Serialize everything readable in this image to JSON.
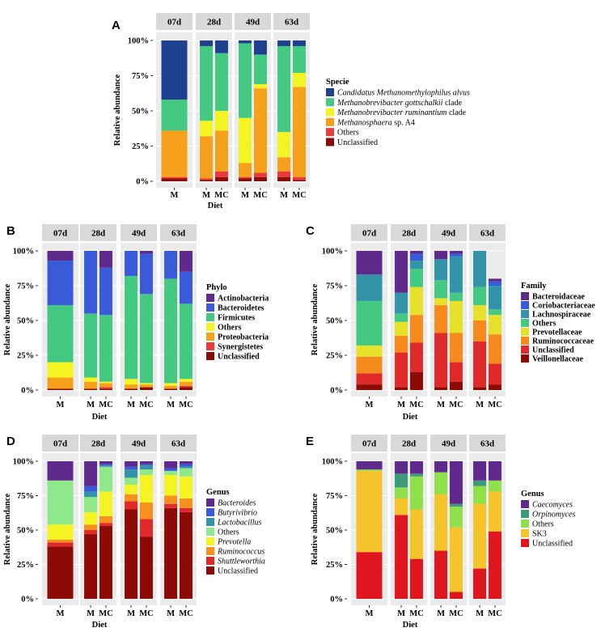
{
  "chart_data": [
    {
      "panel": "A",
      "type": "bar",
      "stacked": true,
      "facets": [
        "07d",
        "28d",
        "49d",
        "63d"
      ],
      "bars": [
        {
          "facet": "07d",
          "group": "M",
          "values": [
            42,
            22,
            0,
            33,
            1,
            2
          ]
        },
        {
          "facet": "28d",
          "group": "M",
          "values": [
            4,
            53,
            11,
            30,
            1,
            1
          ]
        },
        {
          "facet": "28d",
          "group": "MC",
          "values": [
            9,
            41,
            14,
            29,
            4,
            3
          ]
        },
        {
          "facet": "49d",
          "group": "M",
          "values": [
            2,
            53,
            32,
            10,
            1,
            2
          ]
        },
        {
          "facet": "49d",
          "group": "MC",
          "values": [
            10,
            21,
            3,
            60,
            3,
            3
          ]
        },
        {
          "facet": "63d",
          "group": "M",
          "values": [
            4,
            61,
            18,
            10,
            4,
            3
          ]
        },
        {
          "facet": "63d",
          "group": "MC",
          "values": [
            4,
            19,
            10,
            64,
            2,
            1
          ]
        }
      ],
      "title": "Specie",
      "legend_title": "Specie",
      "legend": [
        {
          "name": "Candidatus Methanomethylophilus alvus",
          "italic": "Candidatus Methanomethylophilus alvus",
          "suffix": "",
          "color": "#1f3f8f"
        },
        {
          "name": "Methanobrevibacter gottschalkii clade",
          "italic": "Methanobrevibacter gottschalkii",
          "suffix": "clade",
          "color": "#43c981"
        },
        {
          "name": "Methanobrevibacter ruminantium clade",
          "italic": "Methanobrevibacter ruminantium",
          "suffix": "clade",
          "color": "#f4f423"
        },
        {
          "name": "Methanosphaera sp. A4",
          "italic": "Methanosphaera",
          "suffix": "sp. A4",
          "color": "#f7a01c"
        },
        {
          "name": "Others",
          "italic": "",
          "suffix": "Others",
          "color": "#ec3a3a"
        },
        {
          "name": "Unclassified",
          "italic": "",
          "suffix": "Unclassified",
          "color": "#8c0b06"
        }
      ],
      "ylabel": "Relative abundance",
      "xlabel": "Diet",
      "ylim": [
        0,
        100
      ],
      "yticks": [
        "0%",
        "25%",
        "50%",
        "75%",
        "100%"
      ]
    },
    {
      "panel": "B",
      "type": "bar",
      "stacked": true,
      "facets": [
        "07d",
        "28d",
        "49d",
        "63d"
      ],
      "bars": [
        {
          "facet": "07d",
          "group": "M",
          "values": [
            7,
            32,
            41,
            11,
            8,
            0,
            1
          ]
        },
        {
          "facet": "28d",
          "group": "M",
          "values": [
            0,
            45,
            46,
            3,
            5,
            0,
            1
          ]
        },
        {
          "facet": "28d",
          "group": "MC",
          "values": [
            12,
            34,
            48,
            1,
            3,
            1,
            1
          ]
        },
        {
          "facet": "49d",
          "group": "M",
          "values": [
            0,
            18,
            74,
            4,
            3,
            0,
            1
          ]
        },
        {
          "facet": "49d",
          "group": "MC",
          "values": [
            2,
            29,
            64,
            1,
            2,
            0,
            2
          ]
        },
        {
          "facet": "63d",
          "group": "M",
          "values": [
            0,
            20,
            75,
            2,
            2,
            0,
            1
          ]
        },
        {
          "facet": "63d",
          "group": "MC",
          "values": [
            15,
            23,
            54,
            2,
            3,
            1,
            2
          ]
        }
      ],
      "legend_title": "Phylo",
      "legend": [
        {
          "name": "Actinobacteria",
          "color": "#5e2a8c"
        },
        {
          "name": "Bacteroidetes",
          "color": "#3a5bd9"
        },
        {
          "name": "Firmicutes",
          "color": "#43c981"
        },
        {
          "name": "Others",
          "color": "#f4f423"
        },
        {
          "name": "Proteobacteria",
          "color": "#f7a01c"
        },
        {
          "name": "Synergistetes",
          "color": "#ec3a3a"
        },
        {
          "name": "Unclassified",
          "color": "#8c0b06"
        }
      ],
      "ylabel": "Relative abundance",
      "xlabel": "Diet",
      "ylim": [
        0,
        100
      ],
      "yticks": [
        "0%",
        "25%",
        "50%",
        "75%",
        "100%"
      ]
    },
    {
      "panel": "C",
      "type": "bar",
      "stacked": true,
      "facets": [
        "07d",
        "28d",
        "49d",
        "63d"
      ],
      "bars": [
        {
          "facet": "07d",
          "group": "M",
          "values": [
            17,
            0,
            19,
            32,
            8,
            12,
            8,
            4
          ]
        },
        {
          "facet": "28d",
          "group": "M",
          "values": [
            30,
            0,
            15,
            6,
            10,
            12,
            25,
            2
          ]
        },
        {
          "facet": "28d",
          "group": "MC",
          "values": [
            2,
            5,
            6,
            13,
            20,
            20,
            21,
            13
          ]
        },
        {
          "facet": "49d",
          "group": "M",
          "values": [
            6,
            0,
            15,
            13,
            5,
            20,
            39,
            2
          ]
        },
        {
          "facet": "49d",
          "group": "MC",
          "values": [
            2,
            2,
            26,
            6,
            23,
            21,
            14,
            6
          ]
        },
        {
          "facet": "63d",
          "group": "M",
          "values": [
            0,
            0,
            26,
            13,
            11,
            15,
            33,
            2
          ]
        },
        {
          "facet": "63d",
          "group": "MC",
          "values": [
            2,
            3,
            17,
            4,
            14,
            21,
            15,
            4
          ]
        }
      ],
      "legend_title": "Family",
      "legend": [
        {
          "name": "Bacteroidaceae",
          "color": "#5e2a8c"
        },
        {
          "name": "Coriobacteriaceae",
          "color": "#3a5bd9"
        },
        {
          "name": "Lachnospiraceae",
          "color": "#3393a8"
        },
        {
          "name": "Others",
          "color": "#43c981"
        },
        {
          "name": "Prevotellaceae",
          "color": "#e6e22a"
        },
        {
          "name": "Ruminococcaceae",
          "color": "#f78a1c"
        },
        {
          "name": "Unclassified",
          "color": "#e02a2a"
        },
        {
          "name": "Veillonellaceae",
          "color": "#8c0b06"
        }
      ],
      "ylabel": "Relative abundance",
      "xlabel": "Diet",
      "ylim": [
        0,
        100
      ],
      "yticks": [
        "0%",
        "25%",
        "50%",
        "75%",
        "100%"
      ]
    },
    {
      "panel": "D",
      "type": "bar",
      "stacked": true,
      "facets": [
        "07d",
        "28d",
        "49d",
        "63d"
      ],
      "bars": [
        {
          "facet": "07d",
          "group": "M",
          "values": [
            14,
            0,
            0,
            32,
            11,
            2,
            3,
            38
          ]
        },
        {
          "facet": "28d",
          "group": "M",
          "values": [
            18,
            4,
            4,
            11,
            9,
            4,
            3,
            47
          ]
        },
        {
          "facet": "28d",
          "group": "MC",
          "values": [
            2,
            1,
            1,
            18,
            18,
            5,
            2,
            53
          ]
        },
        {
          "facet": "49d",
          "group": "M",
          "values": [
            4,
            2,
            6,
            5,
            7,
            5,
            6,
            65
          ]
        },
        {
          "facet": "49d",
          "group": "MC",
          "values": [
            2,
            1,
            3,
            4,
            20,
            12,
            13,
            45
          ]
        },
        {
          "facet": "63d",
          "group": "M",
          "values": [
            5,
            2,
            0,
            3,
            15,
            6,
            3,
            66
          ]
        },
        {
          "facet": "63d",
          "group": "MC",
          "values": [
            2,
            2,
            1,
            6,
            16,
            7,
            3,
            63
          ]
        }
      ],
      "legend_title": "Genus",
      "legend": [
        {
          "name": "Bacteroides",
          "italic": true,
          "color": "#5e2a8c"
        },
        {
          "name": "Butyrivibrio",
          "italic": true,
          "color": "#3a5bd9"
        },
        {
          "name": "Lactobacillus",
          "italic": true,
          "color": "#3393a8"
        },
        {
          "name": "Others",
          "italic": false,
          "color": "#8fe88a"
        },
        {
          "name": "Prevotella",
          "italic": true,
          "color": "#f4f423"
        },
        {
          "name": "Ruminococcus",
          "italic": true,
          "color": "#f7901c"
        },
        {
          "name": "Shuttleworthia",
          "italic": true,
          "color": "#e02a2a"
        },
        {
          "name": "Unclassified",
          "italic": false,
          "color": "#8c0b06"
        }
      ],
      "ylabel": "Relative abundance",
      "xlabel": "Diet",
      "ylim": [
        0,
        100
      ],
      "yticks": [
        "0%",
        "25%",
        "50%",
        "75%",
        "100%"
      ]
    },
    {
      "panel": "E",
      "type": "bar",
      "stacked": true,
      "facets": [
        "07d",
        "28d",
        "49d",
        "63d"
      ],
      "bars": [
        {
          "facet": "07d",
          "group": "M",
          "values": [
            6,
            0,
            1,
            59,
            34
          ]
        },
        {
          "facet": "28d",
          "group": "M",
          "values": [
            9,
            10,
            8,
            12,
            61
          ]
        },
        {
          "facet": "28d",
          "group": "MC",
          "values": [
            9,
            2,
            24,
            36,
            29
          ]
        },
        {
          "facet": "49d",
          "group": "M",
          "values": [
            8,
            0,
            16,
            41,
            35
          ]
        },
        {
          "facet": "49d",
          "group": "MC",
          "values": [
            31,
            2,
            15,
            47,
            5
          ]
        },
        {
          "facet": "63d",
          "group": "M",
          "values": [
            14,
            4,
            13,
            47,
            22
          ]
        },
        {
          "facet": "63d",
          "group": "MC",
          "values": [
            14,
            0,
            8,
            29,
            49
          ]
        }
      ],
      "legend_title": "Genus",
      "legend": [
        {
          "name": "Caecomyces",
          "italic": true,
          "color": "#5e2a8c"
        },
        {
          "name": "Orpinomyces",
          "italic": true,
          "color": "#3d9a7a"
        },
        {
          "name": "Others",
          "italic": false,
          "color": "#8fe04a"
        },
        {
          "name": "SK3",
          "italic": false,
          "color": "#f4c42a"
        },
        {
          "name": "Unclassified",
          "italic": false,
          "color": "#e0161e"
        }
      ],
      "ylabel": "Relative abundance",
      "xlabel": "Diet",
      "ylim": [
        0,
        100
      ],
      "yticks": [
        "0%",
        "25%",
        "50%",
        "75%",
        "100%"
      ]
    }
  ]
}
